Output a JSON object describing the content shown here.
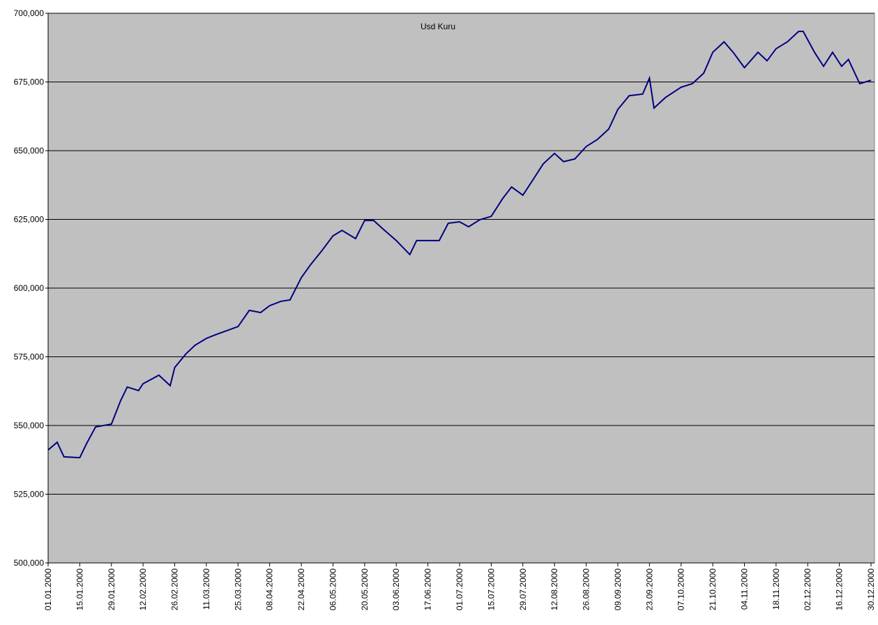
{
  "chart_data": {
    "type": "line",
    "title": "Usd Kuru",
    "x": [
      "01.01.2000",
      "05.01.2000",
      "08.01.2000",
      "15.01.2000",
      "18.01.2000",
      "22.01.2000",
      "29.01.2000",
      "02.02.2000",
      "05.02.2000",
      "10.02.2000",
      "12.02.2000",
      "19.02.2000",
      "24.02.2000",
      "26.02.2000",
      "02.03.2000",
      "06.03.2000",
      "11.03.2000",
      "15.03.2000",
      "25.03.2000",
      "30.03.2000",
      "04.04.2000",
      "08.04.2000",
      "13.04.2000",
      "17.04.2000",
      "22.04.2000",
      "26.04.2000",
      "01.05.2000",
      "06.05.2000",
      "10.05.2000",
      "16.05.2000",
      "20.05.2000",
      "24.05.2000",
      "28.05.2000",
      "03.06.2000",
      "09.06.2000",
      "12.06.2000",
      "17.06.2000",
      "22.06.2000",
      "26.06.2000",
      "01.07.2000",
      "05.07.2000",
      "10.07.2000",
      "15.07.2000",
      "20.07.2000",
      "24.07.2000",
      "29.07.2000",
      "02.08.2000",
      "07.08.2000",
      "12.08.2000",
      "16.08.2000",
      "21.08.2000",
      "26.08.2000",
      "31.08.2000",
      "05.09.2000",
      "09.09.2000",
      "14.09.2000",
      "20.09.2000",
      "23.09.2000",
      "25.09.2000",
      "30.09.2000",
      "07.10.2000",
      "12.10.2000",
      "17.10.2000",
      "21.10.2000",
      "26.10.2000",
      "30.10.2000",
      "04.11.2000",
      "10.11.2000",
      "14.11.2000",
      "18.11.2000",
      "23.11.2000",
      "28.11.2000",
      "30.11.2000",
      "05.12.2000",
      "09.12.2000",
      "13.12.2000",
      "17.12.2000",
      "20.12.2000",
      "25.12.2000",
      "30.12.2000"
    ],
    "series": [
      {
        "color": "#000080",
        "values": [
          541100,
          543900,
          538600,
          538300,
          543400,
          549500,
          550500,
          558900,
          564000,
          562700,
          565200,
          568300,
          564500,
          571100,
          576100,
          579200,
          581700,
          583000,
          586000,
          591900,
          591100,
          593600,
          595200,
          595700,
          603800,
          608400,
          613500,
          619000,
          621000,
          618000,
          624600,
          624600,
          621600,
          617300,
          612200,
          617300,
          617300,
          617300,
          623600,
          624100,
          622300,
          624900,
          626100,
          632500,
          636800,
          633800,
          638800,
          645200,
          649000,
          646000,
          647000,
          651500,
          654100,
          657900,
          665000,
          670000,
          670600,
          676400,
          665500,
          669300,
          673100,
          674400,
          678200,
          685800,
          689600,
          685800,
          680200,
          685800,
          682700,
          687100,
          689600,
          693400,
          693400,
          685800,
          680700,
          685800,
          680700,
          683200,
          674400,
          675600
        ]
      }
    ],
    "xlim": [
      "01.01.2000",
      "30.12.2000"
    ],
    "xticks": [
      "01.01.2000",
      "15.01.2000",
      "29.01.2000",
      "12.02.2000",
      "26.02.2000",
      "11.03.2000",
      "25.03.2000",
      "08.04.2000",
      "22.04.2000",
      "06.05.2000",
      "20.05.2000",
      "03.06.2000",
      "17.06.2000",
      "01.07.2000",
      "15.07.2000",
      "29.07.2000",
      "12.08.2000",
      "26.08.2000",
      "09.09.2000",
      "23.09.2000",
      "07.10.2000",
      "21.10.2000",
      "04.11.2000",
      "18.11.2000",
      "02.12.2000",
      "16.12.2000",
      "30.12.2000"
    ],
    "ylim": [
      500000,
      700000
    ],
    "yticks": [
      {
        "value": 500000,
        "label": "500,000"
      },
      {
        "value": 525000,
        "label": "525,000"
      },
      {
        "value": 550000,
        "label": "550,000"
      },
      {
        "value": 575000,
        "label": "575,000"
      },
      {
        "value": 600000,
        "label": "600,000"
      },
      {
        "value": 625000,
        "label": "625,000"
      },
      {
        "value": 650000,
        "label": "650,000"
      },
      {
        "value": 675000,
        "label": "675,000"
      },
      {
        "value": 700000,
        "label": "700,000"
      }
    ],
    "grid": true
  }
}
